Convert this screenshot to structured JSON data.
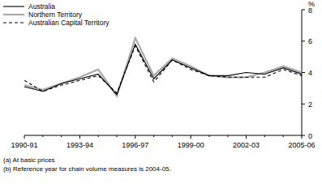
{
  "chart_data": {
    "type": "line",
    "y_label": "%",
    "categories": [
      "1990-91",
      null,
      null,
      "1993-94",
      null,
      null,
      "1996-97",
      null,
      null,
      "1999-00",
      null,
      null,
      "2002-03",
      null,
      null,
      "2005-06"
    ],
    "series": [
      {
        "name": "Australia",
        "color": "#000000",
        "line_style": "solid",
        "values": [
          3.1,
          2.8,
          3.3,
          3.6,
          3.9,
          2.6,
          5.8,
          3.6,
          4.8,
          4.3,
          3.8,
          3.8,
          4.0,
          3.9,
          4.3,
          3.9
        ]
      },
      {
        "name": "Northern Territory",
        "color": "#aaaaaa",
        "line_style": "solid",
        "values": [
          3.2,
          2.9,
          3.3,
          3.7,
          4.2,
          2.5,
          6.2,
          3.8,
          4.9,
          4.4,
          3.8,
          3.7,
          3.7,
          4.0,
          4.4,
          4.0
        ]
      },
      {
        "name": "Australian Capital Territory",
        "color": "#000000",
        "line_style": "dashed",
        "values": [
          3.5,
          2.8,
          3.2,
          3.5,
          3.8,
          2.7,
          5.7,
          3.4,
          4.8,
          4.2,
          3.8,
          3.7,
          3.7,
          3.7,
          4.2,
          3.8
        ]
      }
    ],
    "ylim": [
      0,
      8
    ],
    "yticks": [
      0,
      2,
      4,
      6,
      8
    ],
    "legend": "top-left",
    "notes": [
      "(a) At basic prices",
      "(b) Reference year for chain volume measures is 2004-05."
    ]
  }
}
